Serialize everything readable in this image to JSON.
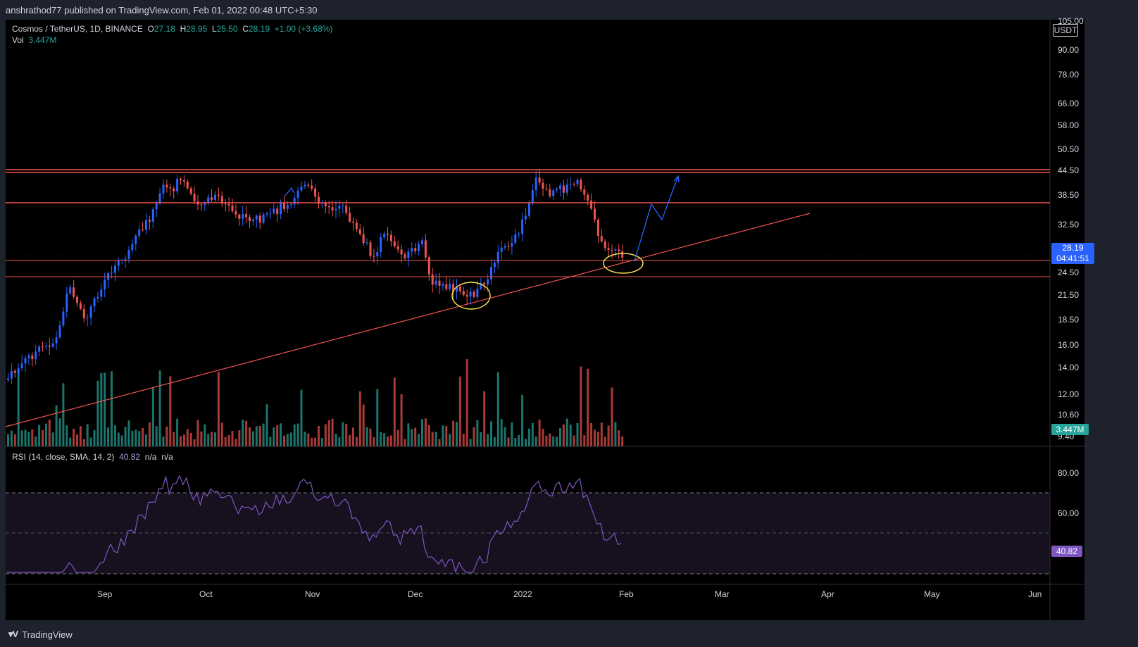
{
  "header": {
    "publisher_line": "anshrathod77 published on TradingView.com, Feb 01, 2022 00:48 UTC+5:30"
  },
  "legend": {
    "symbol": "Cosmos / TetherUS, 1D, BINANCE",
    "o_label": "O",
    "o_val": "27.18",
    "h_label": "H",
    "h_val": "28.95",
    "l_label": "L",
    "l_val": "25.50",
    "c_label": "C",
    "c_val": "28.19",
    "change": "+1.00 (+3.68%)",
    "vol_label": "Vol",
    "vol_val": "3.447M"
  },
  "rsi_legend": {
    "label": "RSI (14, close, SMA, 14, 2)",
    "value": "40.82",
    "na1": "n/a",
    "na2": "n/a"
  },
  "price_axis": {
    "currency": "USDT",
    "top_partial": "105.00",
    "ticks": [
      "90.00",
      "78.00",
      "66.00",
      "58.00",
      "50.50",
      "44.50",
      "38.50",
      "32.50",
      "24.50",
      "21.50",
      "18.50",
      "16.00",
      "14.00",
      "12.00",
      "10.60",
      "9.40"
    ],
    "last_price": "28.19",
    "countdown": "04:41:51",
    "volume_badge": "3.447M"
  },
  "rsi_axis": {
    "ticks": [
      "80.00",
      "60.00"
    ],
    "badge": "40.82"
  },
  "time_axis": {
    "labels": [
      "Sep",
      "Oct",
      "Nov",
      "Dec",
      "2022",
      "Feb",
      "Mar",
      "Apr",
      "May",
      "Jun"
    ]
  },
  "footer": {
    "brand": "TradingView"
  },
  "colors": {
    "up": "#2962ff",
    "down": "#ef5350",
    "vol_up": "#26a69a",
    "vol_down": "#ef5350",
    "rsi": "#7e57c2",
    "ellipse": "#f2e14c",
    "price_badge": "#2962ff",
    "vol_badge": "#26a69a",
    "rsi_badge": "#7e57c2"
  }
}
